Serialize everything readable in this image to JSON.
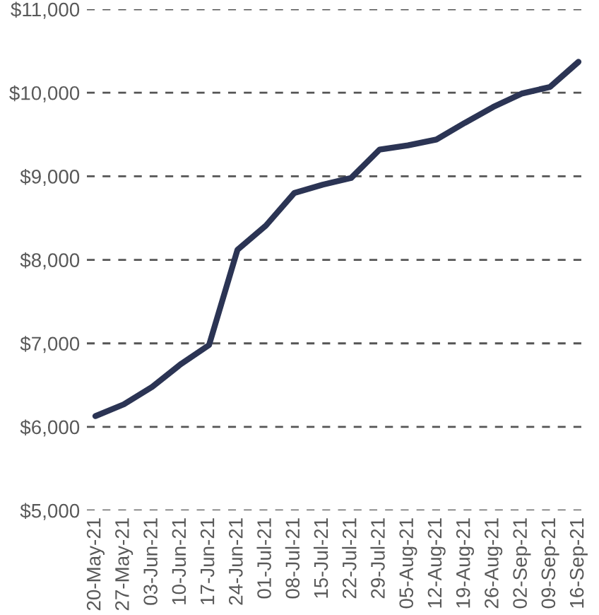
{
  "chart_data": {
    "type": "line",
    "categories": [
      "20-May-21",
      "27-May-21",
      "03-Jun-21",
      "10-Jun-21",
      "17-Jun-21",
      "24-Jun-21",
      "01-Jul-21",
      "08-Jul-21",
      "15-Jul-21",
      "22-Jul-21",
      "29-Jul-21",
      "05-Aug-21",
      "12-Aug-21",
      "19-Aug-21",
      "26-Aug-21",
      "02-Sep-21",
      "09-Sep-21",
      "16-Sep-21"
    ],
    "series": [
      {
        "color": "#2b3454",
        "values": [
          6130,
          6270,
          6480,
          6750,
          6980,
          8120,
          8410,
          8800,
          8900,
          8980,
          9320,
          9370,
          9440,
          9640,
          9830,
          9990,
          10070,
          10370
        ]
      }
    ],
    "ylim": [
      5000,
      11000
    ],
    "yticks": [
      {
        "value": 5000,
        "label": "$5,000"
      },
      {
        "value": 6000,
        "label": "$6,000"
      },
      {
        "value": 7000,
        "label": "$7,000"
      },
      {
        "value": 8000,
        "label": "$8,000"
      },
      {
        "value": 9000,
        "label": "$9,000"
      },
      {
        "value": 10000,
        "label": "$10,000"
      },
      {
        "value": 11000,
        "label": "$11,000"
      }
    ],
    "grid": "y",
    "marker": "none",
    "line_style": "solid"
  }
}
